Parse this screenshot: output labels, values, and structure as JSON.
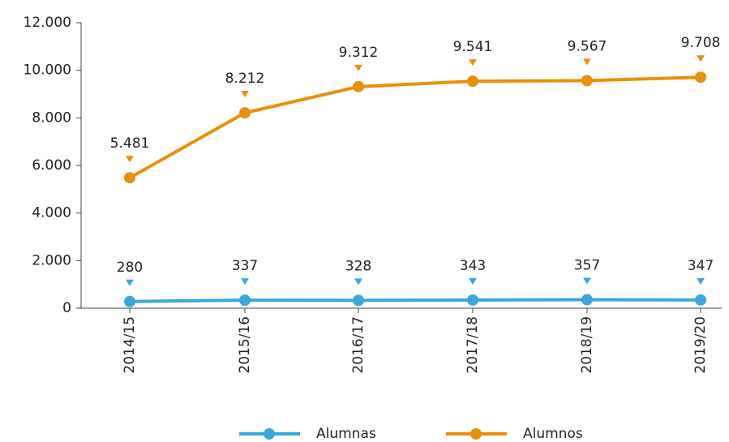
{
  "chart_data": {
    "type": "line",
    "categories": [
      "2014/15",
      "2015/16",
      "2016/17",
      "2017/18",
      "2018/19",
      "2019/20"
    ],
    "series": [
      {
        "name": "Alumnas",
        "color": "#3aa8dc",
        "values": [
          280,
          337,
          328,
          343,
          357,
          347
        ],
        "value_labels": [
          "280",
          "337",
          "328",
          "343",
          "357",
          "347"
        ]
      },
      {
        "name": "Alumnos",
        "color": "#e8900a",
        "values": [
          5481,
          8212,
          9312,
          9541,
          9567,
          9708
        ],
        "value_labels": [
          "5.481",
          "8.212",
          "9.312",
          "9.541",
          "9.567",
          "9.708"
        ]
      }
    ],
    "ylim": [
      0,
      12000
    ],
    "yticks": [
      0,
      {
        "value": 2000,
        "label": "2.000"
      },
      {
        "value": 4000,
        "label": "4.000"
      },
      {
        "value": 6000,
        "label": "6.000"
      },
      {
        "value": 8000,
        "label": "8.000"
      },
      {
        "value": 10000,
        "label": "10.000"
      },
      {
        "value": 12000,
        "label": "12.000"
      }
    ],
    "legend": "bottom"
  }
}
